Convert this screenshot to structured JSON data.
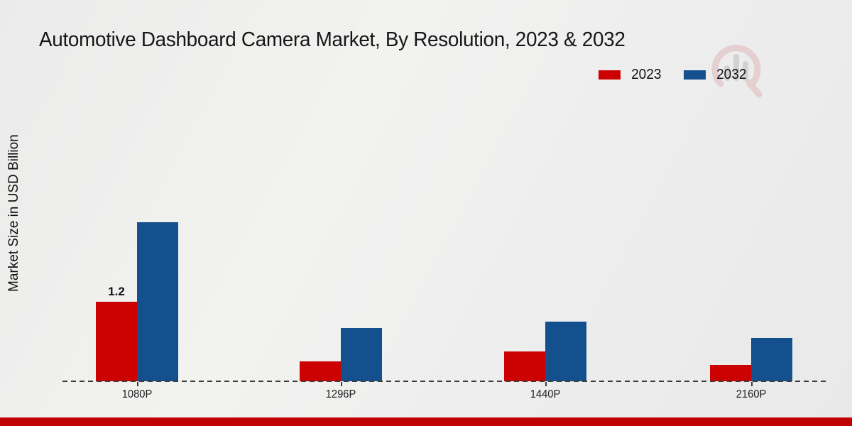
{
  "title": "Automotive Dashboard Camera Market, By Resolution, 2023 & 2032",
  "ylabel": "Market Size in USD Billion",
  "legend": [
    {
      "label": "2023",
      "color": "#cc0101"
    },
    {
      "label": "2032",
      "color": "#14508e"
    }
  ],
  "footer_accent_color": "#c00101",
  "watermark_icon": "market-research-logo",
  "chart_data": {
    "type": "bar",
    "title": "Automotive Dashboard Camera Market, By Resolution, 2023 & 2032",
    "xlabel": "",
    "ylabel": "Market Size in USD Billion",
    "categories": [
      "1080P",
      "1296P",
      "1440P",
      "2160P"
    ],
    "series": [
      {
        "name": "2023",
        "color": "#cc0101",
        "values": [
          1.2,
          0.3,
          0.45,
          0.25
        ]
      },
      {
        "name": "2032",
        "color": "#14508e",
        "values": [
          2.4,
          0.8,
          0.9,
          0.65
        ]
      }
    ],
    "bar_labels": [
      {
        "category": "1080P",
        "series": "2023",
        "text": "1.2"
      }
    ],
    "unit": "USD Billion",
    "grid": false,
    "y_axis_ticks_visible": false,
    "baseline_style": "dashed",
    "legend_position": "top-right",
    "ylim": [
      0,
      2.6
    ]
  }
}
